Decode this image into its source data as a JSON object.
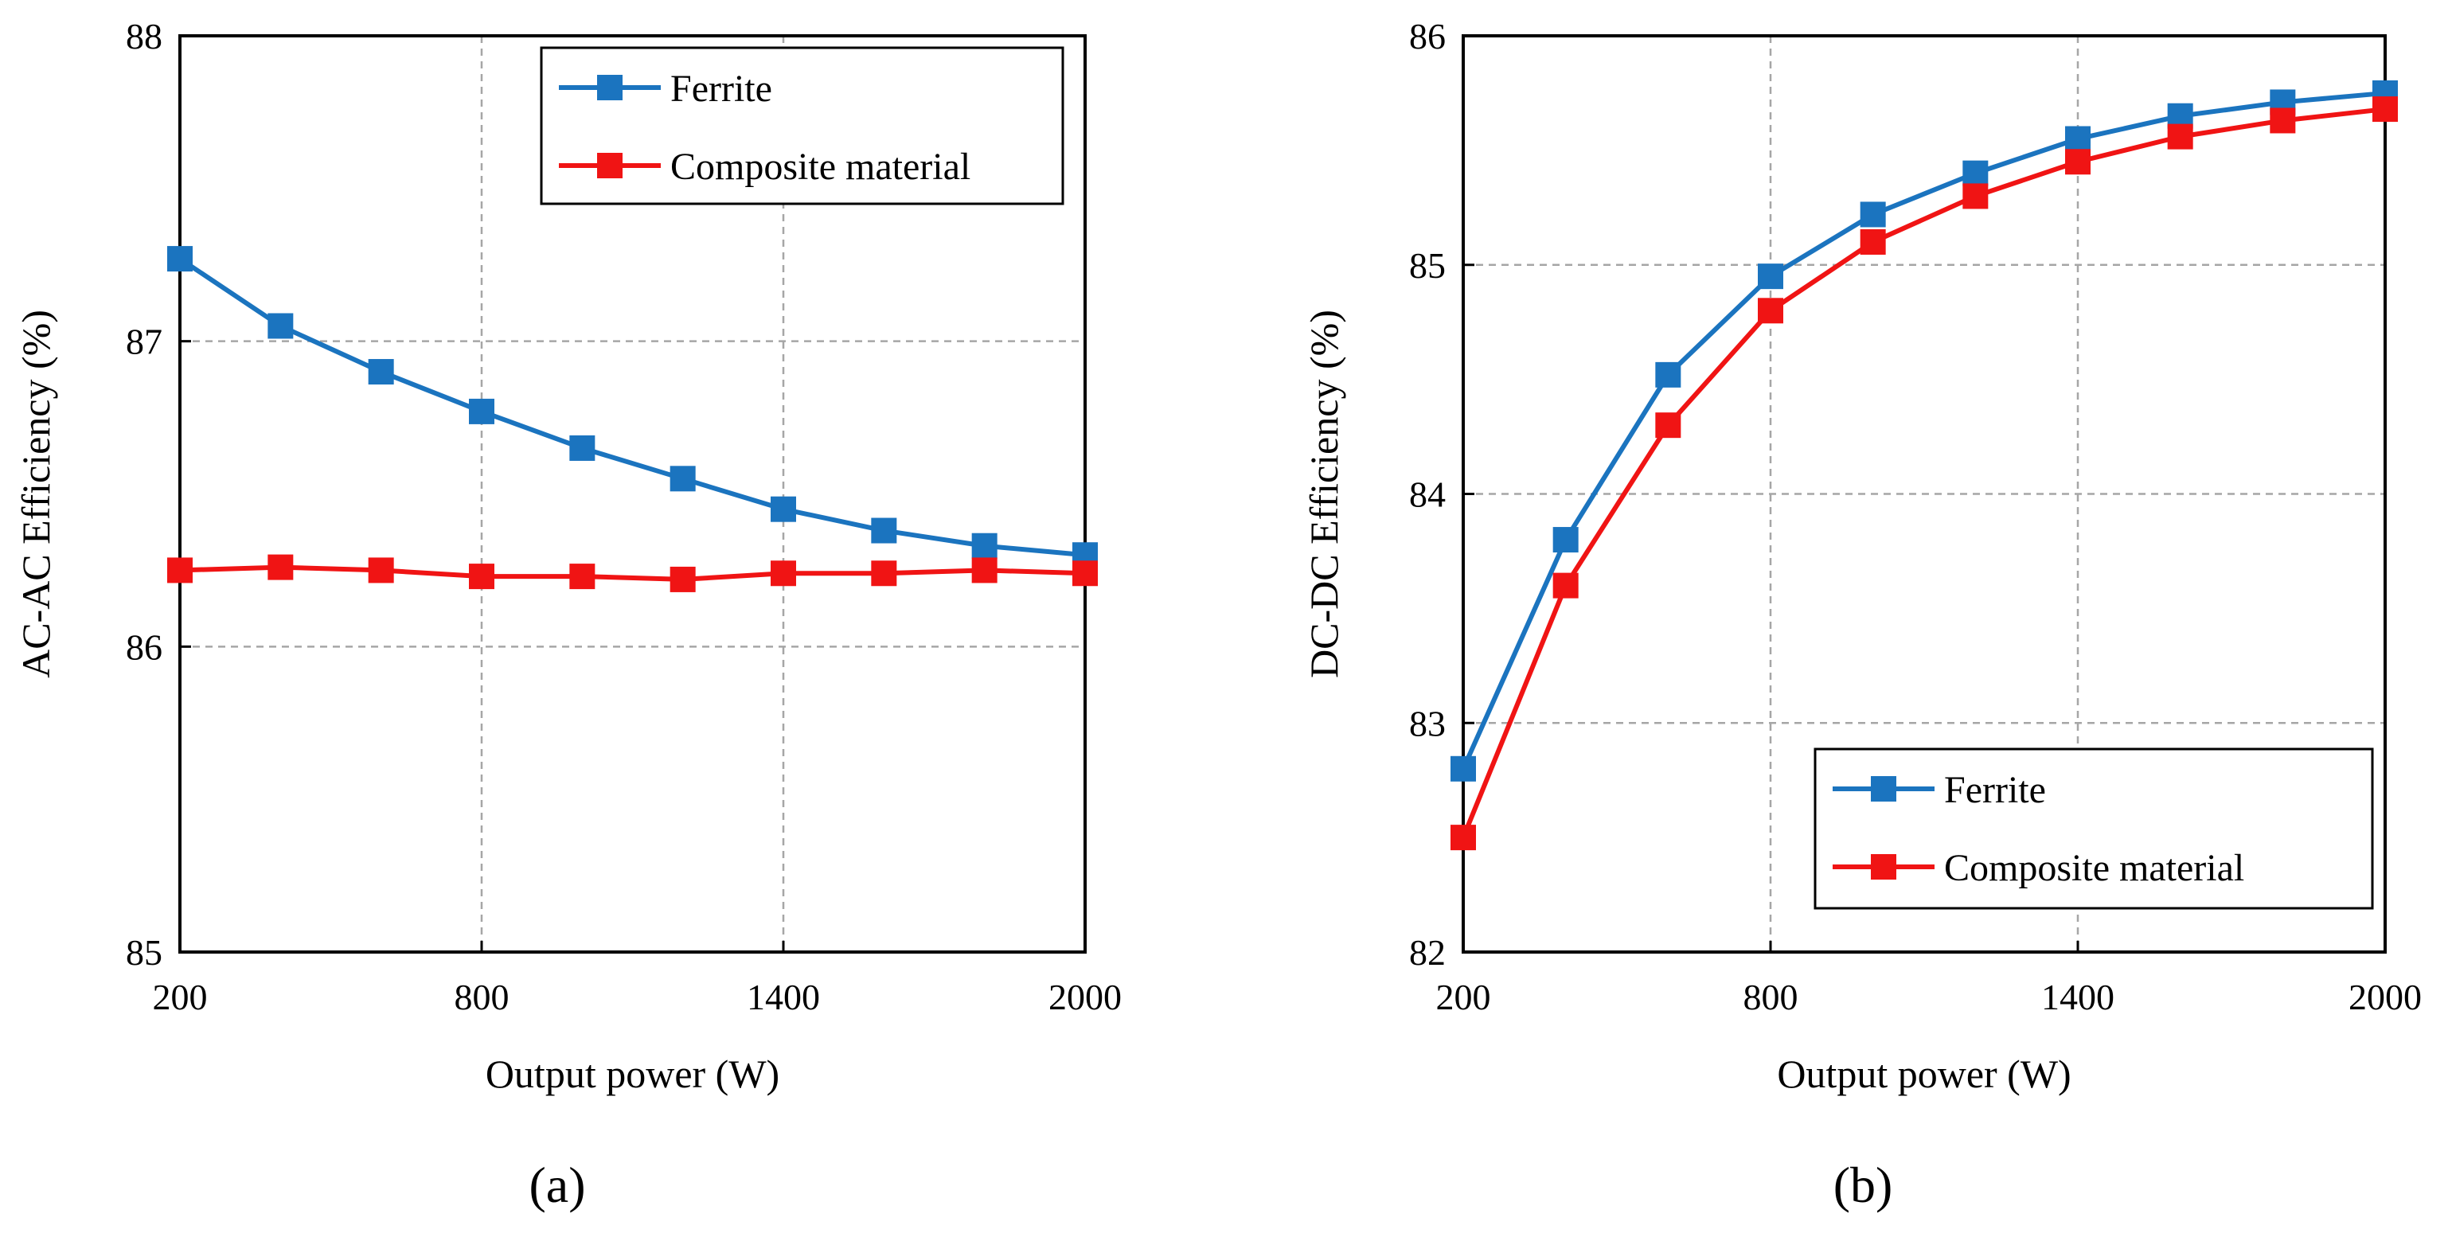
{
  "colors": {
    "ferrite": "#1B74BF",
    "composite": "#F01414",
    "grid": "#a6a6a6",
    "axis": "#000000"
  },
  "chart_data": [
    {
      "type": "line",
      "panel_label": "(a)",
      "xlabel": "Output power (W)",
      "ylabel": "AC-AC Efficiency (%)",
      "xlim": [
        200,
        2000
      ],
      "ylim": [
        85,
        88
      ],
      "xticks": [
        200,
        800,
        1400,
        2000
      ],
      "yticks": [
        85,
        86,
        87,
        88
      ],
      "x": [
        200,
        400,
        600,
        800,
        1000,
        1200,
        1400,
        1600,
        1800,
        2000
      ],
      "legend_position": "top-right",
      "series": [
        {
          "name": "Ferrite",
          "color": "#1B74BF",
          "values": [
            87.27,
            87.05,
            86.9,
            86.77,
            86.65,
            86.55,
            86.45,
            86.38,
            86.33,
            86.3
          ]
        },
        {
          "name": "Composite material",
          "color": "#F01414",
          "values": [
            86.25,
            86.26,
            86.25,
            86.23,
            86.23,
            86.22,
            86.24,
            86.24,
            86.25,
            86.24
          ]
        }
      ]
    },
    {
      "type": "line",
      "panel_label": "(b)",
      "xlabel": "Output power (W)",
      "ylabel": "DC-DC Efficiency (%)",
      "xlim": [
        200,
        2000
      ],
      "ylim": [
        82,
        86
      ],
      "xticks": [
        200,
        800,
        1400,
        2000
      ],
      "yticks": [
        82,
        83,
        84,
        85,
        86
      ],
      "x": [
        200,
        400,
        600,
        800,
        1000,
        1200,
        1400,
        1600,
        1800,
        2000
      ],
      "legend_position": "bottom-right",
      "series": [
        {
          "name": "Ferrite",
          "color": "#1B74BF",
          "values": [
            82.8,
            83.8,
            84.52,
            84.95,
            85.22,
            85.4,
            85.55,
            85.65,
            85.71,
            85.75
          ]
        },
        {
          "name": "Composite material",
          "color": "#F01414",
          "values": [
            82.5,
            83.6,
            84.3,
            84.8,
            85.1,
            85.3,
            85.45,
            85.56,
            85.63,
            85.68
          ]
        }
      ]
    }
  ]
}
